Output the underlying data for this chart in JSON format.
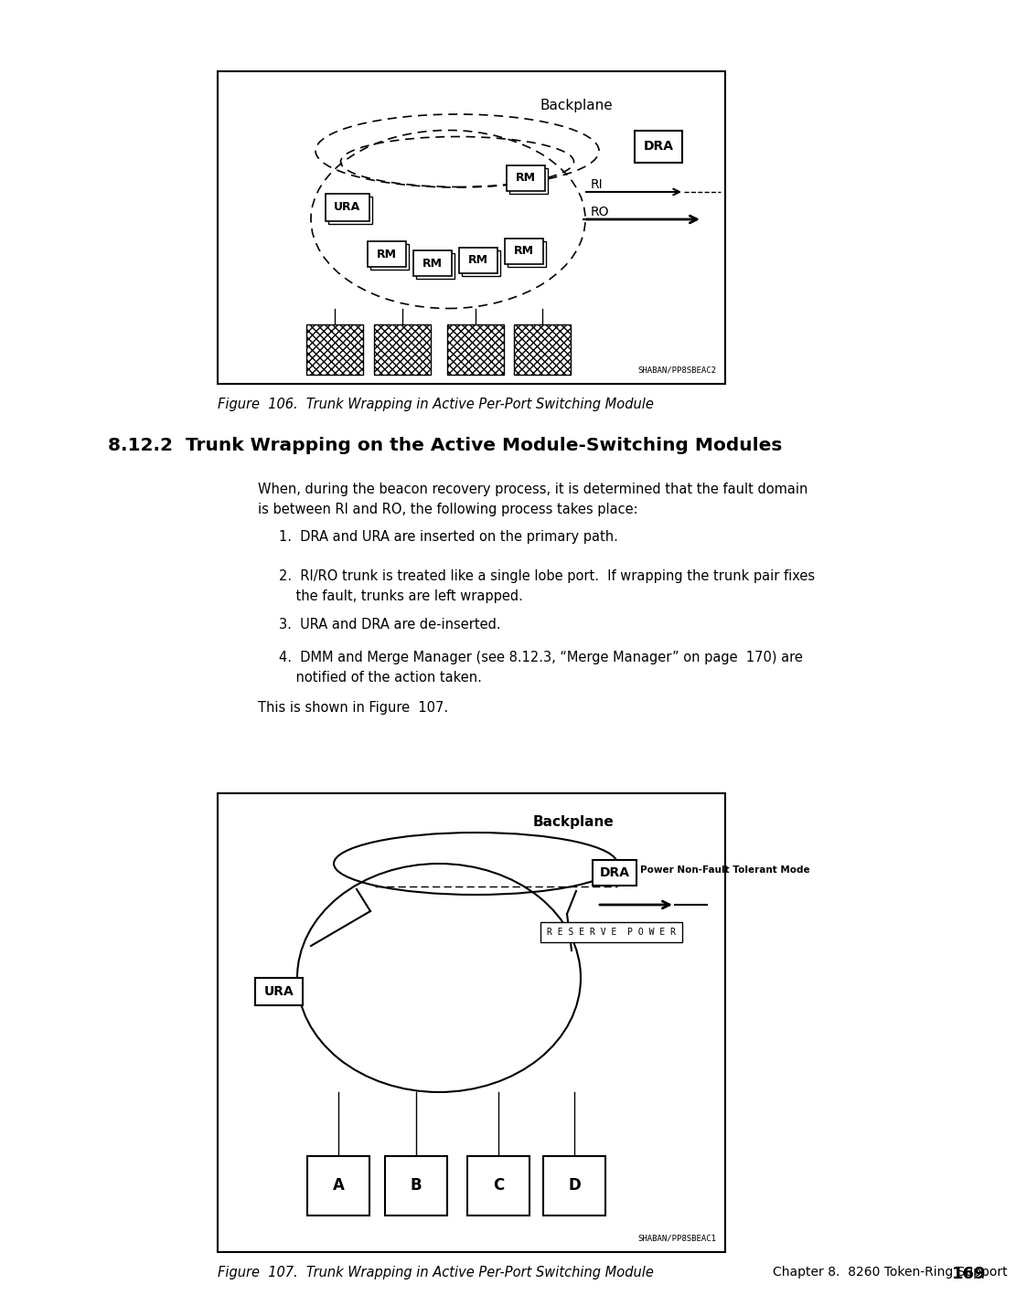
{
  "page_bg": "#ffffff",
  "fig1_caption": "Figure  106.  Trunk Wrapping in Active Per-Port Switching Module",
  "fig2_caption": "Figure  107.  Trunk Wrapping in Active Per-Port Switching Module",
  "section_title": "8.12.2  Trunk Wrapping on the Active Module-Switching Modules",
  "body_line1": "When, during the beacon recovery process, it is determined that the fault domain",
  "body_line2": "is between RI and RO, the following process takes place:",
  "list1": "1.  DRA and URA are inserted on the primary path.",
  "list2a": "2.  RI/RO trunk is treated like a single lobe port.  If wrapping the trunk pair fixes",
  "list2b": "    the fault, trunks are left wrapped.",
  "list3": "3.  URA and DRA are de-inserted.",
  "list4a": "4.  DMM and Merge Manager (see 8.12.3, “Merge Manager” on page  170) are",
  "list4b": "    notified of the action taken.",
  "this_shown": "This is shown in Figure  107.",
  "footer_left": "Chapter 8.  8260 Token-Ring Support",
  "footer_page": "169",
  "fig1_code": "SHABAN/PP8SBEAC2",
  "fig2_code": "SHABAN/PP8SBEAC1",
  "backplane": "Backplane",
  "dra": "DRA",
  "ura": "URA",
  "ri": "RI",
  "ro": "RO",
  "rm": "RM",
  "power_mode": "Power Non-Fault Tolerant Mode",
  "reserve_power": "R E S E R V E  P O W E R"
}
